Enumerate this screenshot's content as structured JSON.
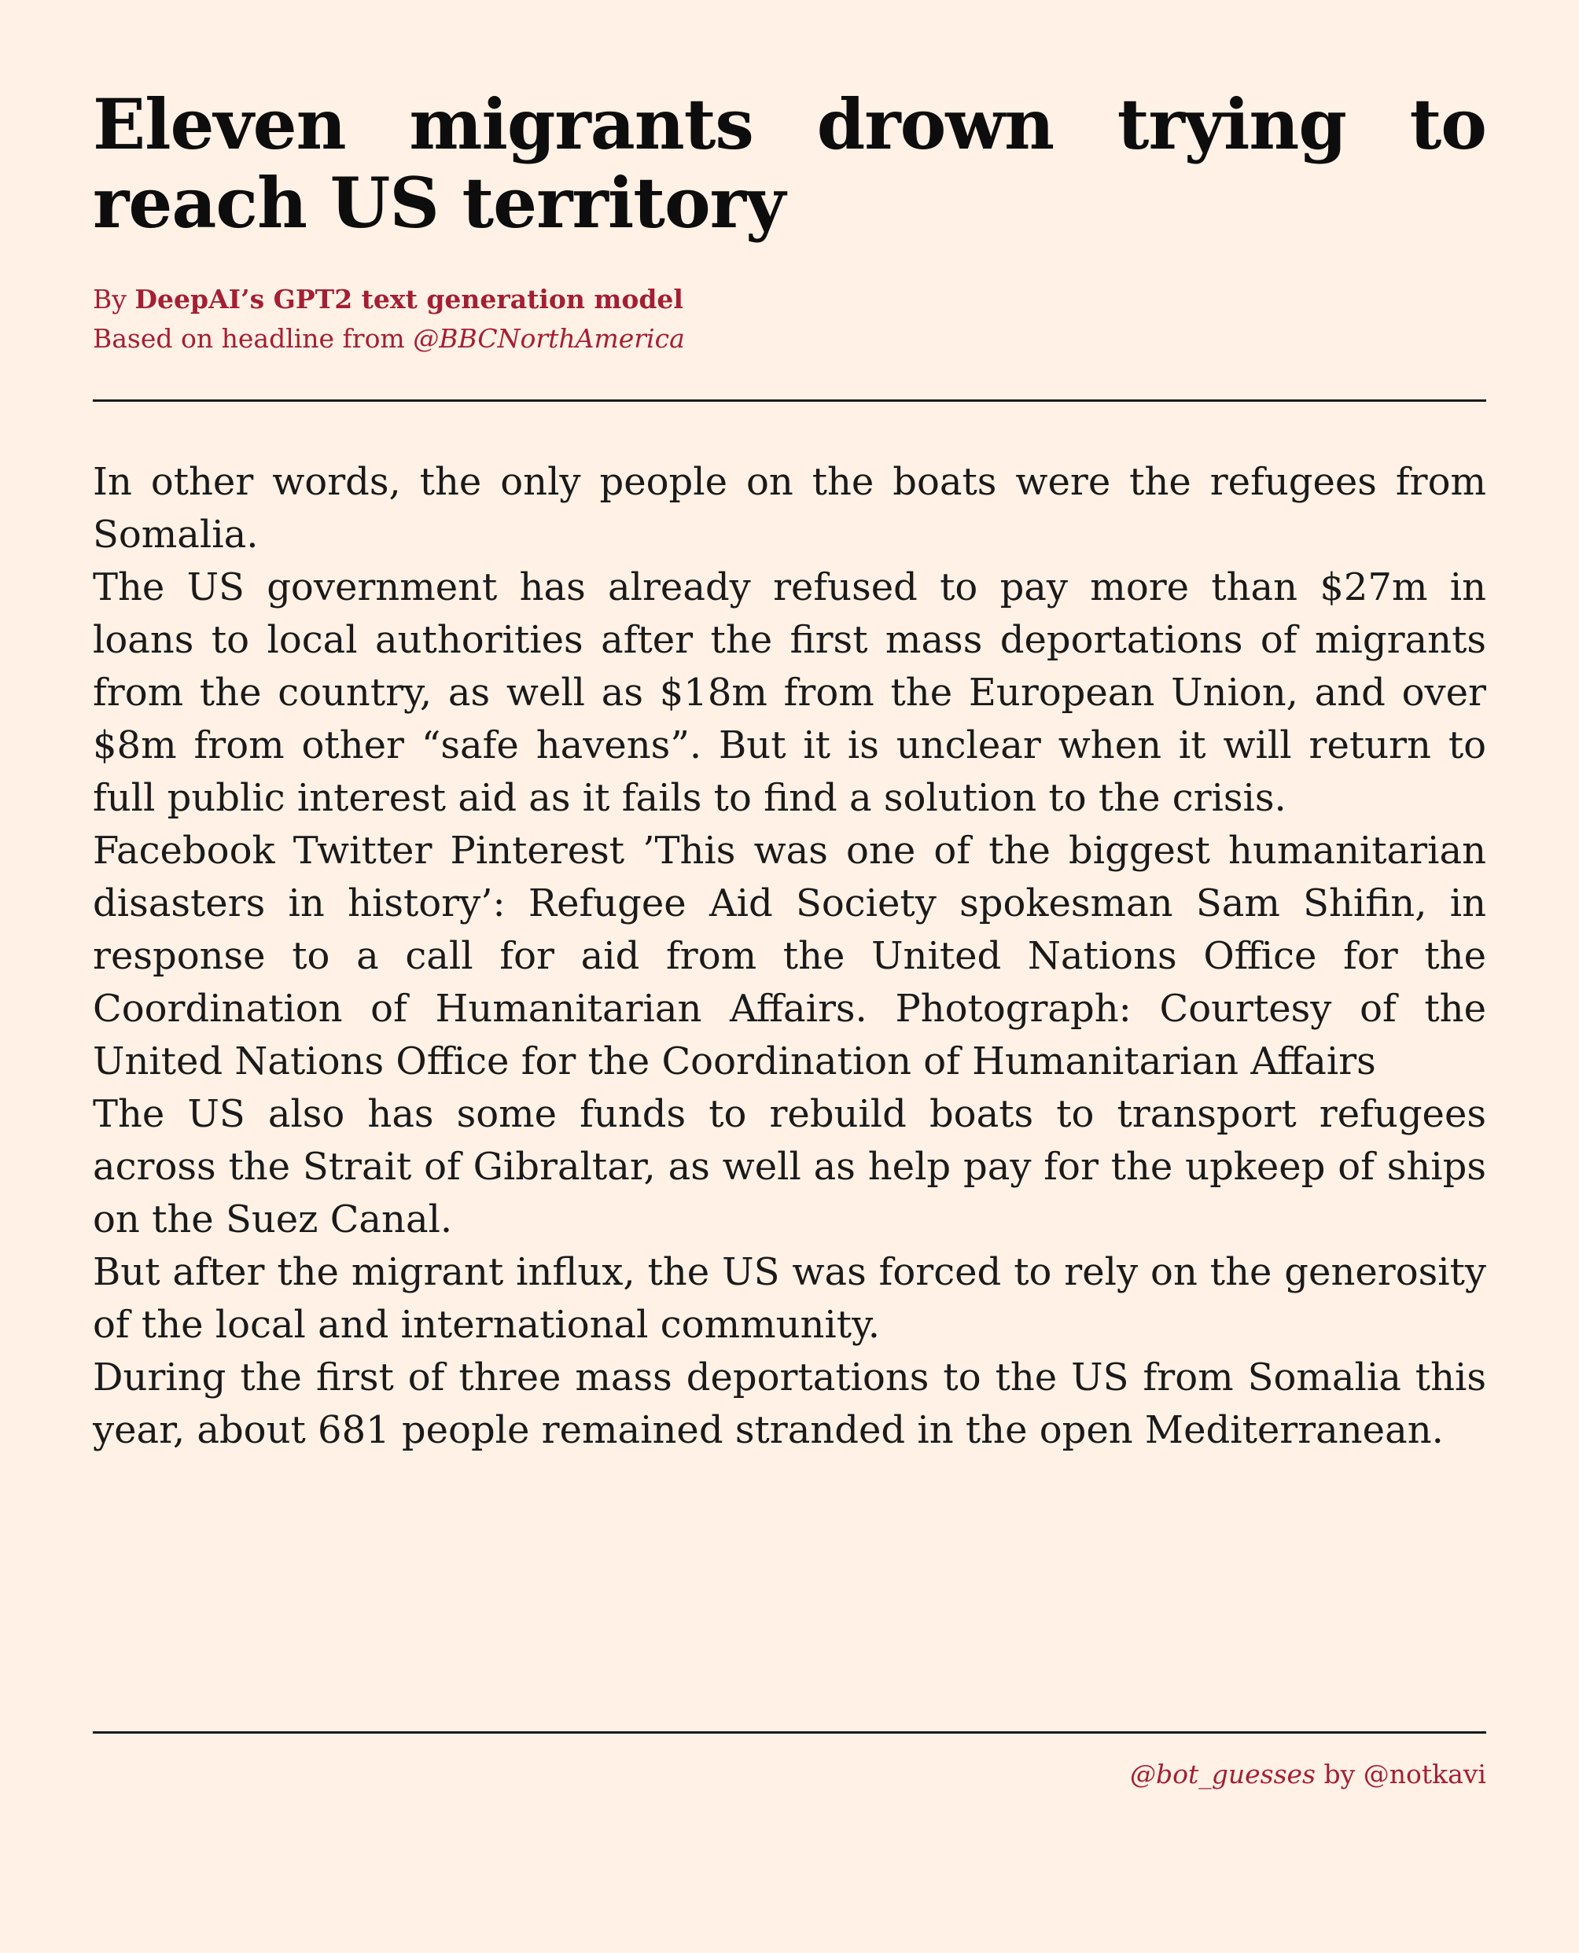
{
  "article": {
    "headline": "Eleven migrants drown trying to reach US territory",
    "byline_prefix": "By ",
    "author": "DeepAI’s GPT2 text generation model",
    "source_prefix": "Based on headline from ",
    "source_handle": "@BBCNorthAmerica",
    "paragraphs": [
      "In other words, the only people on the boats were the refugees from Somalia.",
      "The US government has already refused to pay more than $27m in loans to local authorities after the first mass deportations of migrants from the country, as well as $18m from the European Union, and over $8m from other “safe havens”.  But it is unclear when it will return to full public interest aid as it fails to find a solution to the crisis.",
      "Facebook Twitter Pinterest ’This was one of the biggest humanitarian disasters in history’: Refugee Aid Society spokesman Sam Shifin, in response to a call for aid from the United Nations Office for the Coordination of Humanitarian Affairs. Photograph: Courtesy of the United Nations Office for the Coordination of Humanitarian Affairs",
      "The US also has some funds to rebuild boats to transport refugees across the Strait of Gibraltar, as well as help pay for the upkeep of ships on the Suez Canal.",
      "But after the migrant influx, the US was forced to rely on the generosity of the local and international community.",
      "During the first of three mass deportations to the US from Somalia this year, about 681 people remained stranded in the open Mediterranean."
    ]
  },
  "footer": {
    "bot_handle": "@bot_guesses",
    "by_text": " by ",
    "creator_handle": "@notkavi"
  },
  "colors": {
    "background": "#fff1e5",
    "accent": "#a31f34",
    "text": "#1a1a1a"
  }
}
